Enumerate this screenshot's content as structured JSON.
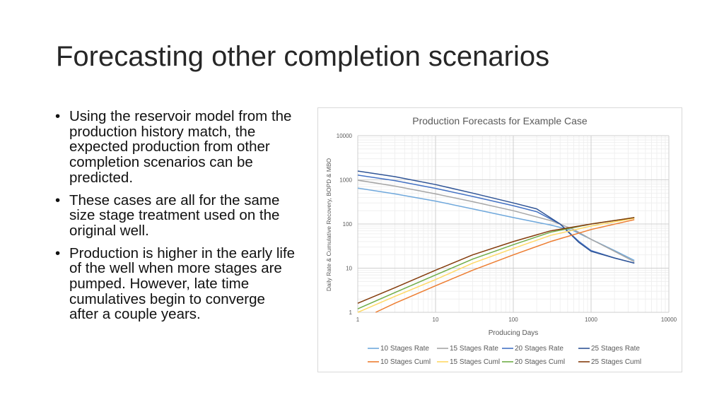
{
  "slide": {
    "title": "Forecasting other completion scenarios",
    "bullets": [
      "Using the reservoir model from the production history match, the expected production from other completion scenarios can be predicted.",
      "These cases are all for the same size stage treatment used on the original well.",
      "Production is higher in the early life of the well when more stages are pumped. However, late time cumulatives begin to converge after a couple years."
    ],
    "bullet_char": "•"
  },
  "chart_data": {
    "type": "line",
    "title": "Production Forecasts for Example Case",
    "xlabel": "Producing Days",
    "ylabel": "Daily Rate & Cumulative Recovery, BOPD & MBO",
    "x_scale": "log",
    "y_scale": "log",
    "xlim": [
      1,
      10000
    ],
    "ylim": [
      1,
      10000
    ],
    "x_ticks": [
      "1",
      "10",
      "100",
      "1000",
      "10000"
    ],
    "y_ticks": [
      "1",
      "10",
      "100",
      "1000",
      "10000"
    ],
    "grid": true,
    "legend_position": "bottom",
    "series": [
      {
        "name": "10 Stages Rate",
        "color": "#6fa8dc",
        "points": [
          [
            1,
            650
          ],
          [
            3,
            480
          ],
          [
            10,
            330
          ],
          [
            30,
            220
          ],
          [
            100,
            140
          ],
          [
            300,
            95
          ],
          [
            600,
            70
          ],
          [
            1000,
            45
          ],
          [
            2000,
            25
          ],
          [
            3600,
            15
          ]
        ]
      },
      {
        "name": "15 Stages Rate",
        "color": "#a6a6a6",
        "points": [
          [
            1,
            980
          ],
          [
            3,
            720
          ],
          [
            10,
            480
          ],
          [
            30,
            320
          ],
          [
            100,
            200
          ],
          [
            300,
            120
          ],
          [
            600,
            75
          ],
          [
            1000,
            45
          ],
          [
            2000,
            24
          ],
          [
            3600,
            14
          ]
        ]
      },
      {
        "name": "20 Stages Rate",
        "color": "#4472c4",
        "points": [
          [
            1,
            1280
          ],
          [
            3,
            960
          ],
          [
            10,
            640
          ],
          [
            30,
            420
          ],
          [
            100,
            260
          ],
          [
            200,
            190
          ],
          [
            400,
            100
          ],
          [
            700,
            40
          ],
          [
            1000,
            25
          ],
          [
            2000,
            17
          ],
          [
            3600,
            13
          ]
        ]
      },
      {
        "name": "25 Stages Rate",
        "color": "#2f5496",
        "points": [
          [
            1,
            1580
          ],
          [
            3,
            1180
          ],
          [
            10,
            780
          ],
          [
            30,
            500
          ],
          [
            100,
            300
          ],
          [
            200,
            220
          ],
          [
            400,
            100
          ],
          [
            700,
            38
          ],
          [
            1000,
            24
          ],
          [
            2000,
            17
          ],
          [
            3600,
            13
          ]
        ]
      },
      {
        "name": "10 Stages Cuml",
        "color": "#ed7d31",
        "points": [
          [
            1.7,
            1
          ],
          [
            3,
            1.6
          ],
          [
            10,
            4
          ],
          [
            30,
            9
          ],
          [
            100,
            20
          ],
          [
            300,
            40
          ],
          [
            1000,
            75
          ],
          [
            3600,
            125
          ]
        ]
      },
      {
        "name": "15 Stages Cuml",
        "color": "#ffd966",
        "points": [
          [
            1,
            1
          ],
          [
            3,
            2.3
          ],
          [
            10,
            5.5
          ],
          [
            30,
            13
          ],
          [
            100,
            28
          ],
          [
            300,
            55
          ],
          [
            1000,
            90
          ],
          [
            3600,
            135
          ]
        ]
      },
      {
        "name": "20 Stages Cuml",
        "color": "#70ad47",
        "points": [
          [
            1,
            1.2
          ],
          [
            3,
            2.8
          ],
          [
            10,
            7
          ],
          [
            30,
            16
          ],
          [
            100,
            34
          ],
          [
            300,
            65
          ],
          [
            1000,
            100
          ],
          [
            3600,
            140
          ]
        ]
      },
      {
        "name": "25 Stages Cuml",
        "color": "#843c0c",
        "points": [
          [
            1,
            1.6
          ],
          [
            3,
            3.6
          ],
          [
            10,
            9
          ],
          [
            30,
            20
          ],
          [
            100,
            40
          ],
          [
            300,
            70
          ],
          [
            1000,
            100
          ],
          [
            3600,
            140
          ]
        ]
      }
    ]
  }
}
